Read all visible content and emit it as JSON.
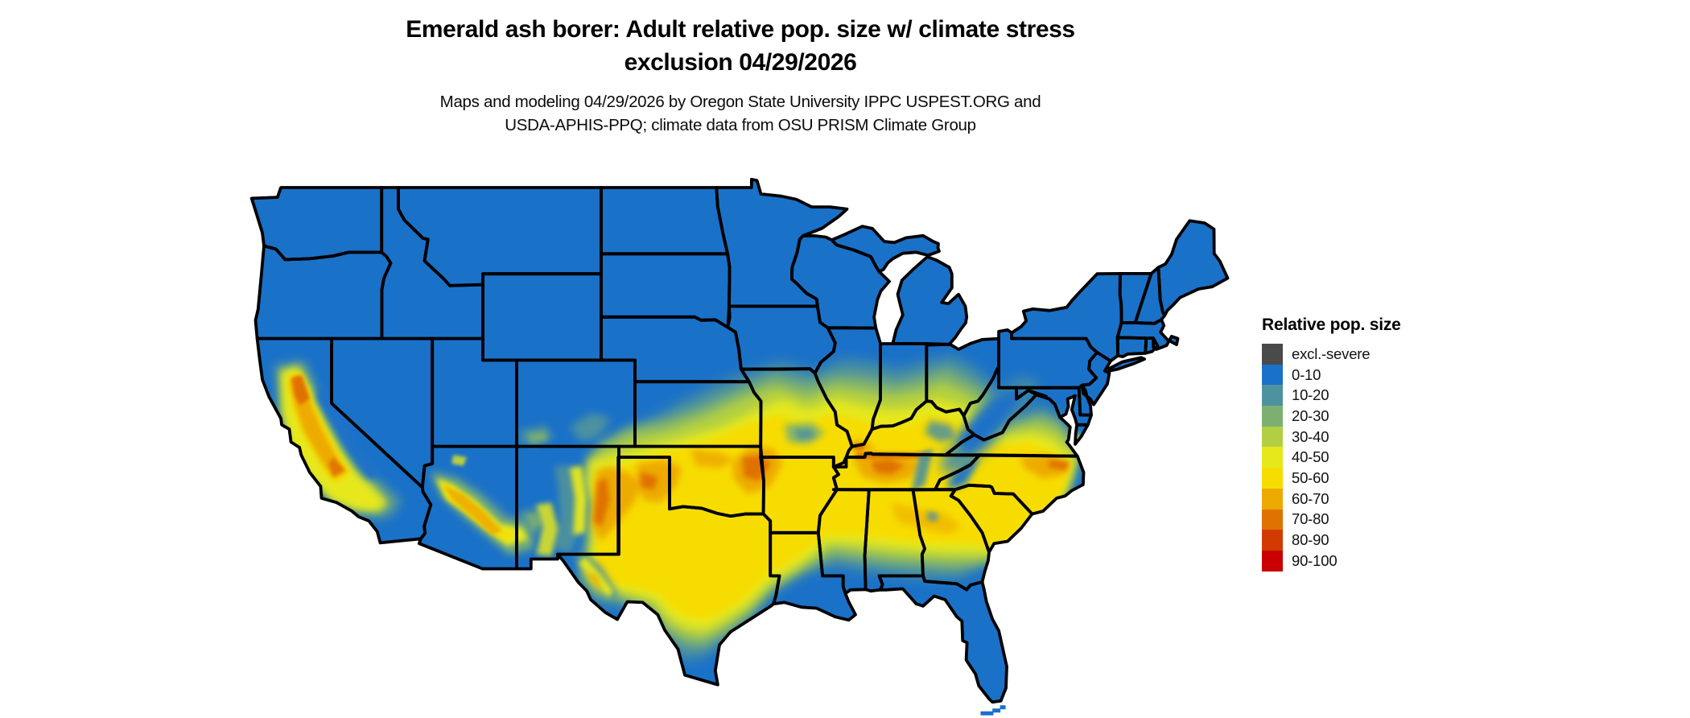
{
  "title": {
    "line1": "Emerald ash borer: Adult relative pop. size w/ climate stress",
    "line2": "exclusion 04/29/2026"
  },
  "subtitle": {
    "line1": "Maps and modeling 04/29/2026 by Oregon State University IPPC USPEST.ORG and",
    "line2": "USDA-APHIS-PPQ; climate data from OSU PRISM Climate Group"
  },
  "legend": {
    "title": "Relative pop. size",
    "items": [
      {
        "label": "excl.-severe",
        "color": "#4a4a4a"
      },
      {
        "label": "0-10",
        "color": "#1a71c8"
      },
      {
        "label": "10-20",
        "color": "#4d929e"
      },
      {
        "label": "20-30",
        "color": "#7cb071"
      },
      {
        "label": "30-40",
        "color": "#b2cf43"
      },
      {
        "label": "40-50",
        "color": "#e6e81c"
      },
      {
        "label": "50-60",
        "color": "#f7dc00"
      },
      {
        "label": "60-70",
        "color": "#edaa01"
      },
      {
        "label": "70-80",
        "color": "#e07201"
      },
      {
        "label": "80-90",
        "color": "#d23a01"
      },
      {
        "label": "90-100",
        "color": "#c90001"
      }
    ]
  },
  "map": {
    "region": "Continental United States",
    "border_color": "#000000",
    "background_color": "#ffffff",
    "base_land_color": "#1a71c8"
  }
}
